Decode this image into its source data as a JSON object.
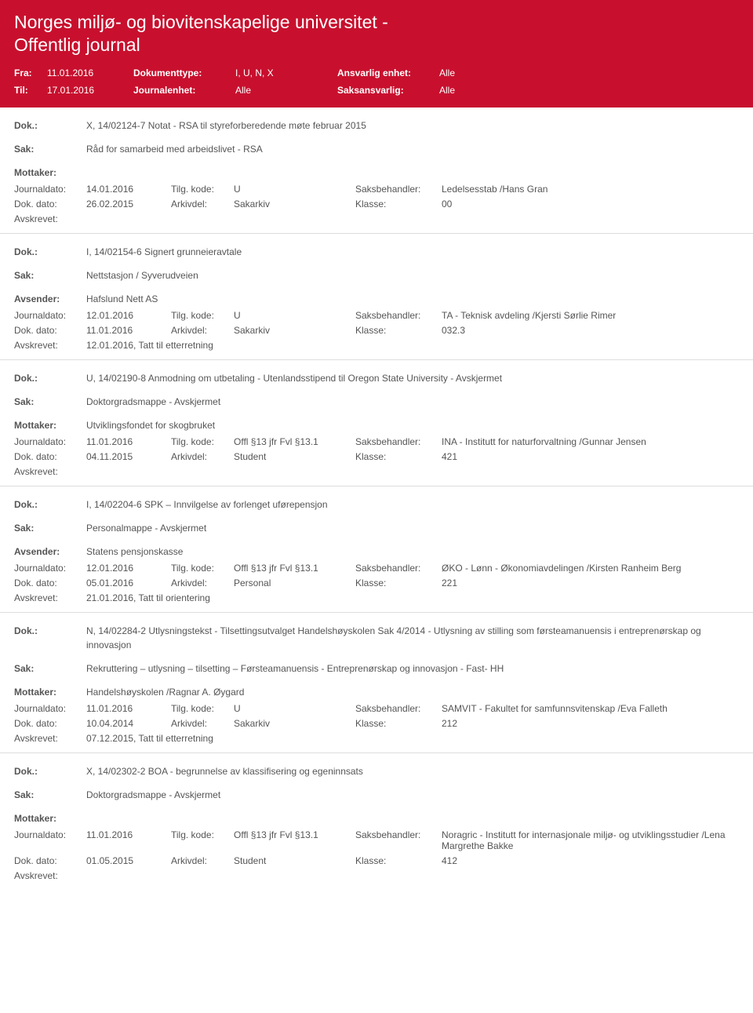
{
  "header": {
    "title": "Norges miljø- og biovitenskapelige universitet - Offentlig journal",
    "fra_label": "Fra:",
    "fra_value": "11.01.2016",
    "doktype_label": "Dokumenttype:",
    "doktype_value": "I, U, N, X",
    "ansvarlig_label": "Ansvarlig enhet:",
    "ansvarlig_value": "Alle",
    "til_label": "Til:",
    "til_value": "17.01.2016",
    "journalenhet_label": "Journalenhet:",
    "journalenhet_value": "Alle",
    "saksansvarlig_label": "Saksansvarlig:",
    "saksansvarlig_value": "Alle"
  },
  "labels": {
    "dok": "Dok.:",
    "sak": "Sak:",
    "mottaker": "Mottaker:",
    "avsender": "Avsender:",
    "journaldato": "Journaldato:",
    "tilgkode": "Tilg. kode:",
    "saksbehandler": "Saksbehandler:",
    "dokdato": "Dok. dato:",
    "arkivdel": "Arkivdel:",
    "klasse": "Klasse:",
    "avskrevet": "Avskrevet:"
  },
  "entries": [
    {
      "dok": "X, 14/02124-7 Notat - RSA til styreforberedende møte februar 2015",
      "sak": "Råd for samarbeid med arbeidslivet - RSA",
      "party_label": "Mottaker:",
      "party_value": "",
      "journaldato": "14.01.2016",
      "tilgkode": "U",
      "saksbehandler": "Ledelsesstab /Hans Gran",
      "dokdato": "26.02.2015",
      "arkivdel": "Sakarkiv",
      "klasse": "00",
      "avskrevet": ""
    },
    {
      "dok": "I, 14/02154-6 Signert grunneieravtale",
      "sak": "Nettstasjon / Syverudveien",
      "party_label": "Avsender:",
      "party_value": "Hafslund Nett AS",
      "journaldato": "12.01.2016",
      "tilgkode": "U",
      "saksbehandler": "TA - Teknisk avdeling /Kjersti Sørlie Rimer",
      "dokdato": "11.01.2016",
      "arkivdel": "Sakarkiv",
      "klasse": "032.3",
      "avskrevet": "12.01.2016, Tatt til etterretning"
    },
    {
      "dok": "U, 14/02190-8 Anmodning om utbetaling - Utenlandsstipend til Oregon State University - Avskjermet",
      "sak": "Doktorgradsmappe - Avskjermet",
      "party_label": "Mottaker:",
      "party_value": "Utviklingsfondet for skogbruket",
      "journaldato": "11.01.2016",
      "tilgkode": "Offl §13 jfr Fvl §13.1",
      "saksbehandler": "INA - Institutt for naturforvaltning /Gunnar Jensen",
      "dokdato": "04.11.2015",
      "arkivdel": "Student",
      "klasse": "421",
      "avskrevet": ""
    },
    {
      "dok": "I, 14/02204-6 SPK – Innvilgelse av forlenget uførepensjon",
      "sak": "Personalmappe - Avskjermet",
      "party_label": "Avsender:",
      "party_value": "Statens pensjonskasse",
      "journaldato": "12.01.2016",
      "tilgkode": "Offl §13 jfr Fvl §13.1",
      "saksbehandler": "ØKO - Lønn - Økonomiavdelingen  /Kirsten Ranheim Berg",
      "dokdato": "05.01.2016",
      "arkivdel": "Personal",
      "klasse": "221",
      "avskrevet": "21.01.2016, Tatt til orientering"
    },
    {
      "dok": "N, 14/02284-2 Utlysningstekst - Tilsettingsutvalget Handelshøyskolen Sak 4/2014 - Utlysning av stilling som førsteamanuensis i entreprenørskap og innovasjon",
      "sak": "Rekruttering – utlysning – tilsetting – Førsteamanuensis - Entreprenørskap og innovasjon - Fast- HH",
      "party_label": "Mottaker:",
      "party_value": "Handelshøyskolen /Ragnar A. Øygard",
      "journaldato": "11.01.2016",
      "tilgkode": "U",
      "saksbehandler": "SAMVIT - Fakultet for samfunnsvitenskap /Eva Falleth",
      "dokdato": "10.04.2014",
      "arkivdel": "Sakarkiv",
      "klasse": "212",
      "avskrevet": "07.12.2015, Tatt til etterretning"
    },
    {
      "dok": "X, 14/02302-2 BOA - begrunnelse av klassifisering og egeninnsats",
      "sak": "Doktorgradsmappe - Avskjermet",
      "party_label": "Mottaker:",
      "party_value": "",
      "journaldato": "11.01.2016",
      "tilgkode": "Offl §13 jfr Fvl §13.1",
      "saksbehandler": "Noragric - Institutt for internasjonale miljø- og utviklingsstudier /Lena Margrethe Bakke",
      "dokdato": "01.05.2015",
      "arkivdel": "Student",
      "klasse": "412",
      "avskrevet": ""
    }
  ]
}
